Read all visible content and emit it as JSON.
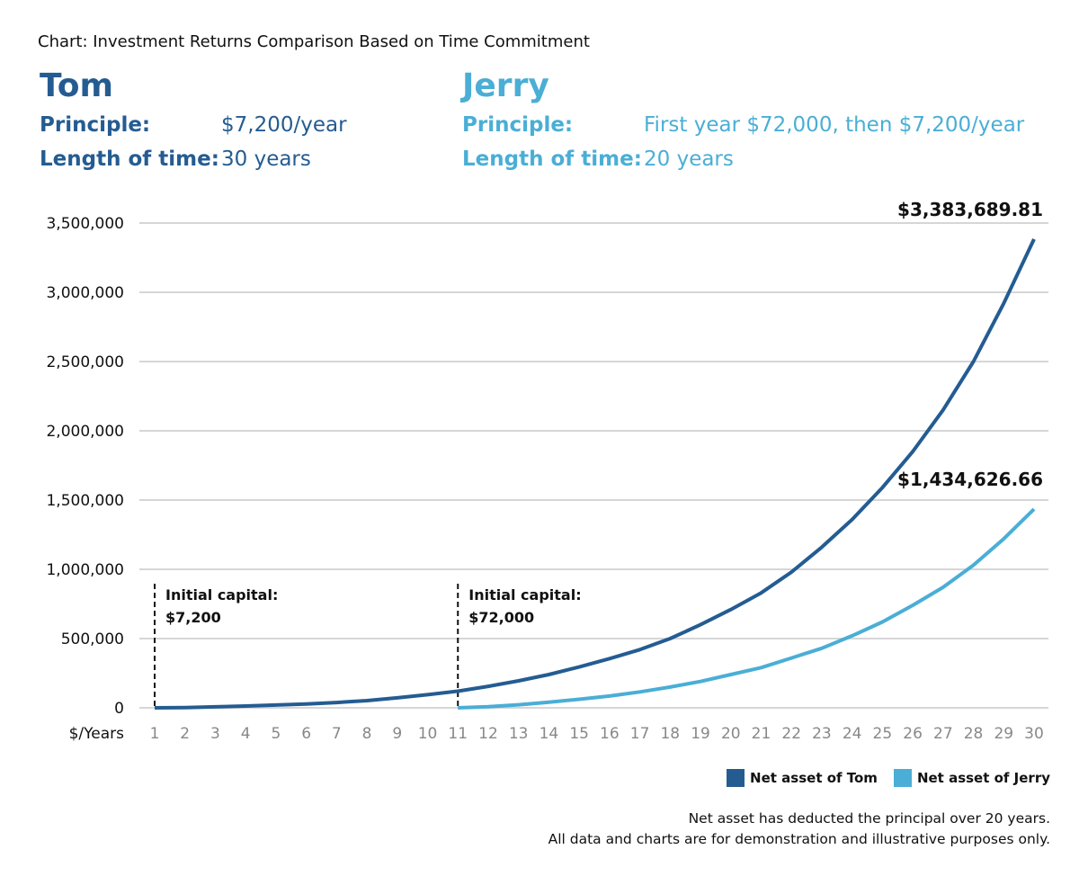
{
  "caption": "Chart: Investment Returns Comparison Based on Time Commitment",
  "tom": {
    "name": "Tom",
    "principle_label": "Principle:",
    "principle_value": "$7,200/year",
    "time_label": "Length of time:",
    "time_value": "30 years"
  },
  "jerry": {
    "name": "Jerry",
    "principle_label": "Principle:",
    "principle_value": "First year $72,000, then $7,200/year",
    "time_label": "Length of time:",
    "time_value": "20 years"
  },
  "colors": {
    "tom": "#245c92",
    "jerry": "#4aaed6"
  },
  "legend": {
    "tom": "Net asset of Tom",
    "jerry": "Net asset of Jerry"
  },
  "notes": [
    "Net asset has deducted the principal over 20 years.",
    "All data and charts are for demonstration and illustrative purposes only."
  ],
  "chart_data": {
    "type": "line",
    "title": "",
    "xlabel": "$/Years",
    "ylabel": "",
    "ylim": [
      0,
      3500000
    ],
    "yticks": [
      0,
      500000,
      1000000,
      1500000,
      2000000,
      2500000,
      3000000,
      3500000
    ],
    "ytick_labels": [
      "0",
      "500,000",
      "1,000,000",
      "1,500,000",
      "2,000,000",
      "2,500,000",
      "3,000,000",
      "3,500,000"
    ],
    "x": [
      1,
      2,
      3,
      4,
      5,
      6,
      7,
      8,
      9,
      10,
      11,
      12,
      13,
      14,
      15,
      16,
      17,
      18,
      19,
      20,
      21,
      22,
      23,
      24,
      25,
      26,
      27,
      28,
      29,
      30
    ],
    "grid": true,
    "legend_position": "bottom-right",
    "series": [
      {
        "name": "Net asset of Tom",
        "color": "#245c92",
        "x": [
          1,
          2,
          3,
          4,
          5,
          6,
          7,
          8,
          9,
          10,
          11,
          12,
          13,
          14,
          15,
          16,
          17,
          18,
          19,
          20,
          21,
          22,
          23,
          24,
          25,
          26,
          27,
          28,
          29,
          30
        ],
        "values": [
          0,
          2000,
          7000,
          13000,
          20000,
          28000,
          38000,
          52000,
          72000,
          95000,
          120000,
          155000,
          195000,
          240000,
          295000,
          355000,
          420000,
          500000,
          600000,
          710000,
          830000,
          980000,
          1160000,
          1360000,
          1590000,
          1850000,
          2150000,
          2500000,
          2920000,
          3383689.81
        ]
      },
      {
        "name": "Net asset of Jerry",
        "color": "#4aaed6",
        "x": [
          11,
          12,
          13,
          14,
          15,
          16,
          17,
          18,
          19,
          20,
          21,
          22,
          23,
          24,
          25,
          26,
          27,
          28,
          29,
          30
        ],
        "values": [
          0,
          8000,
          22000,
          40000,
          62000,
          85000,
          115000,
          150000,
          190000,
          240000,
          290000,
          360000,
          430000,
          520000,
          620000,
          740000,
          870000,
          1030000,
          1220000,
          1434626.66
        ]
      }
    ],
    "annotations": [
      {
        "x": 1,
        "line1": "Initial capital:",
        "line2": "$7,200"
      },
      {
        "x": 11,
        "line1": "Initial capital:",
        "line2": "$72,000"
      }
    ],
    "end_labels": [
      {
        "series": 0,
        "text": "$3,383,689.81"
      },
      {
        "series": 1,
        "text": "$1,434,626.66"
      }
    ]
  }
}
